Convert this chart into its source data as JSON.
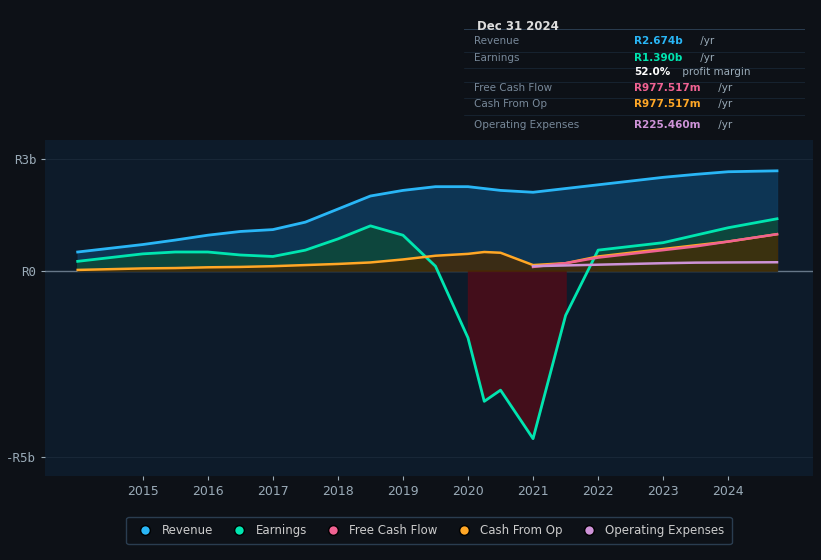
{
  "bg_color": "#0d1117",
  "plot_bg_color": "#0d1b2a",
  "years": [
    2014,
    2014.5,
    2015,
    2015.5,
    2016,
    2016.5,
    2017,
    2017.5,
    2018,
    2018.5,
    2019,
    2019.5,
    2020,
    2020.25,
    2020.5,
    2021,
    2021.5,
    2022,
    2022.5,
    2023,
    2023.5,
    2024,
    2024.75
  ],
  "revenue": [
    0.5,
    0.6,
    0.7,
    0.82,
    0.95,
    1.05,
    1.1,
    1.3,
    1.65,
    2.0,
    2.15,
    2.25,
    2.25,
    2.2,
    2.15,
    2.1,
    2.2,
    2.3,
    2.4,
    2.5,
    2.58,
    2.65,
    2.674
  ],
  "earnings": [
    0.25,
    0.35,
    0.45,
    0.5,
    0.5,
    0.42,
    0.38,
    0.55,
    0.85,
    1.2,
    0.95,
    0.12,
    -1.8,
    -3.5,
    -3.2,
    -4.5,
    -1.2,
    0.55,
    0.65,
    0.75,
    0.95,
    1.15,
    1.39
  ],
  "cash_from_op": [
    0.02,
    0.04,
    0.06,
    0.07,
    0.09,
    0.1,
    0.12,
    0.15,
    0.18,
    0.22,
    0.3,
    0.4,
    0.45,
    0.5,
    0.48,
    0.15,
    0.2,
    0.38,
    0.48,
    0.58,
    0.68,
    0.78,
    0.977
  ],
  "free_cash_flow": [
    null,
    null,
    null,
    null,
    null,
    null,
    null,
    null,
    null,
    null,
    null,
    null,
    null,
    null,
    null,
    0.1,
    0.2,
    0.35,
    0.45,
    0.55,
    0.65,
    0.78,
    0.977
  ],
  "operating_expenses": [
    null,
    null,
    null,
    null,
    null,
    null,
    null,
    null,
    null,
    null,
    null,
    null,
    null,
    null,
    null,
    0.12,
    0.14,
    0.16,
    0.18,
    0.2,
    0.215,
    0.22,
    0.2254
  ],
  "revenue_color": "#29b6f6",
  "earnings_color": "#00e5b0",
  "fcf_color": "#f06292",
  "cashop_color": "#ffa726",
  "opex_color": "#ce93d8",
  "revenue_fill": "#0d3a5c",
  "earnings_fill_pos": "#0d4a3a",
  "earnings_fill_neg": "#4a0d1a",
  "cashop_fill": "#4a2a00",
  "ylim": [
    -5.5,
    3.5
  ],
  "yticks": [
    3,
    0,
    -5
  ],
  "ytick_labels": [
    "R3b",
    "R0",
    "-R5b"
  ],
  "xlim": [
    2013.5,
    2025.3
  ],
  "xticks": [
    2015,
    2016,
    2017,
    2018,
    2019,
    2020,
    2021,
    2022,
    2023,
    2024
  ],
  "grid_color": "#1e2d3d",
  "zero_line_color": "#aaaaaa",
  "info_box_rows": [
    {
      "label": "Revenue",
      "value": "R2.674b",
      "unit": " /yr",
      "value_color": "#29b6f6",
      "bold_value": true
    },
    {
      "label": "Earnings",
      "value": "R1.390b",
      "unit": " /yr",
      "value_color": "#00e5b0",
      "bold_value": true
    },
    {
      "label": "",
      "value": "52.0%",
      "unit": " profit margin",
      "value_color": "#ffffff",
      "bold_value": true
    },
    {
      "label": "Free Cash Flow",
      "value": "R977.517m",
      "unit": " /yr",
      "value_color": "#f06292",
      "bold_value": true
    },
    {
      "label": "Cash From Op",
      "value": "R977.517m",
      "unit": " /yr",
      "value_color": "#ffa726",
      "bold_value": true
    },
    {
      "label": "Operating Expenses",
      "value": "R225.460m",
      "unit": " /yr",
      "value_color": "#ce93d8",
      "bold_value": true
    }
  ],
  "legend": [
    {
      "label": "Revenue",
      "color": "#29b6f6"
    },
    {
      "label": "Earnings",
      "color": "#00e5b0"
    },
    {
      "label": "Free Cash Flow",
      "color": "#f06292"
    },
    {
      "label": "Cash From Op",
      "color": "#ffa726"
    },
    {
      "label": "Operating Expenses",
      "color": "#ce93d8"
    }
  ]
}
